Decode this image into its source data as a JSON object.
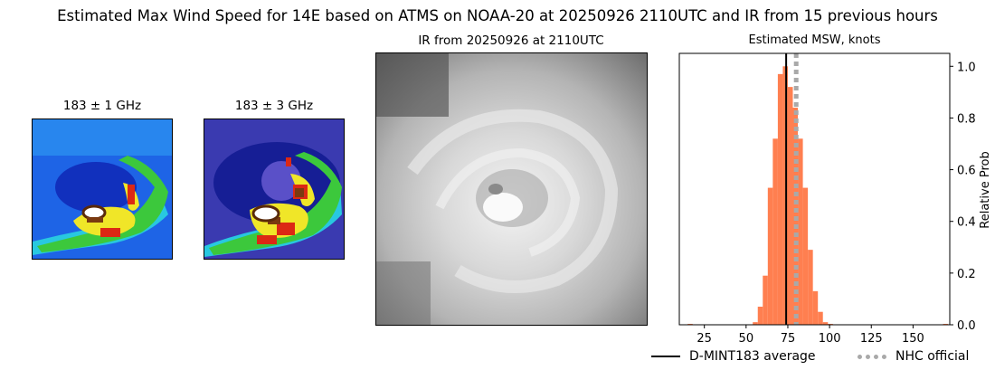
{
  "figure": {
    "title": "Estimated Max Wind Speed for 14E based on ATMS on NOAA-20 at 20250926 2110UTC and IR from 15 previous hours"
  },
  "panels": {
    "mw1": {
      "title": "183 ± 1 GHz"
    },
    "mw3": {
      "title": "183 ± 3 GHz"
    },
    "ir": {
      "title": "IR from 20250926 at 2110UTC"
    },
    "hist": {
      "title": "Estimated MSW, knots"
    }
  },
  "chart_data": {
    "type": "bar",
    "title": "Estimated MSW, knots",
    "xlabel": "",
    "ylabel": "Relative Prob",
    "xlim": [
      10,
      172
    ],
    "ylim": [
      0,
      1.05
    ],
    "x_ticks": [
      25,
      50,
      75,
      100,
      125,
      150
    ],
    "y_ticks": [
      0.0,
      0.2,
      0.4,
      0.6,
      0.8,
      1.0
    ],
    "y_tick_labels": [
      "0.0",
      "0.2",
      "0.4",
      "0.6",
      "0.8",
      "1.0"
    ],
    "y_axis_side": "right",
    "bin_width": 3,
    "bins": [
      {
        "x": 15,
        "y": 0.0
      },
      {
        "x": 54,
        "y": 0.01
      },
      {
        "x": 57,
        "y": 0.07
      },
      {
        "x": 60,
        "y": 0.19
      },
      {
        "x": 63,
        "y": 0.53
      },
      {
        "x": 66,
        "y": 0.72
      },
      {
        "x": 69,
        "y": 0.97
      },
      {
        "x": 72,
        "y": 1.0
      },
      {
        "x": 75,
        "y": 0.92
      },
      {
        "x": 78,
        "y": 0.84
      },
      {
        "x": 81,
        "y": 0.72
      },
      {
        "x": 84,
        "y": 0.53
      },
      {
        "x": 87,
        "y": 0.29
      },
      {
        "x": 90,
        "y": 0.13
      },
      {
        "x": 93,
        "y": 0.05
      },
      {
        "x": 96,
        "y": 0.01
      },
      {
        "x": 99,
        "y": 0.0
      },
      {
        "x": 168,
        "y": 0.0
      }
    ],
    "bar_color": "#ff7f50",
    "vlines": [
      {
        "name": "D-MINT183 average",
        "x": 74,
        "color": "#000000",
        "style": "solid"
      },
      {
        "name": "NHC official",
        "x": 80,
        "color": "#a9a9a9",
        "style": "dotted"
      }
    ],
    "legend_placement": "bottom-right"
  }
}
